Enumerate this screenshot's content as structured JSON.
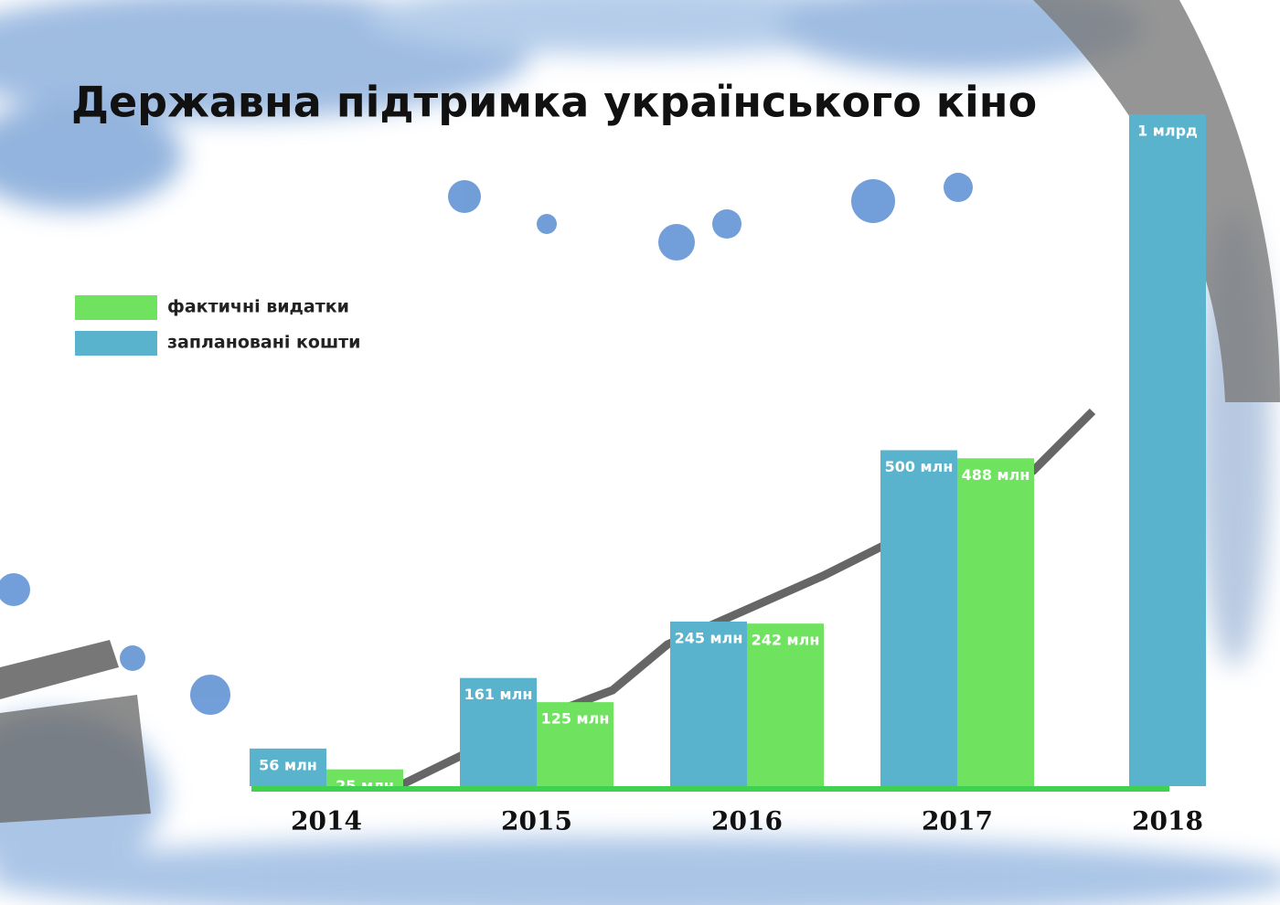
{
  "chart_data": {
    "type": "bar",
    "title": "Державна підтримка українського кіно",
    "categories": [
      "2014",
      "2015",
      "2016",
      "2017",
      "2018"
    ],
    "series": [
      {
        "name": "фактичні видатки",
        "color": "#6fe35f",
        "values": [
          25,
          125,
          242,
          488,
          null
        ],
        "value_labels": [
          "25 млн",
          "125 млн",
          "242 млн",
          "488 млн",
          null
        ]
      },
      {
        "name": "заплановані кошти",
        "color": "#5ab3cc",
        "values": [
          56,
          161,
          245,
          500,
          1000
        ],
        "value_labels": [
          "56 млн",
          "161 млн",
          "245 млн",
          "500 млн",
          "1 млрд"
        ]
      }
    ]
  }
}
